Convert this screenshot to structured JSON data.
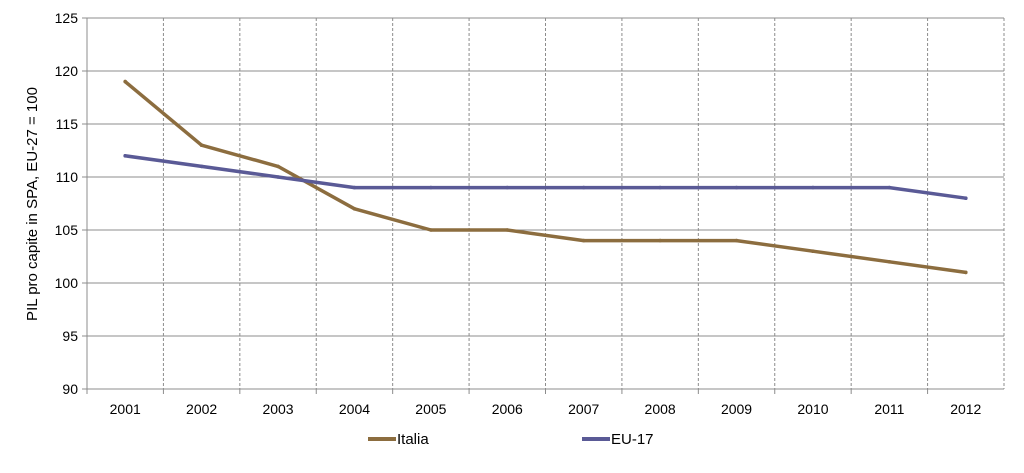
{
  "chart_data": {
    "type": "line",
    "title": "",
    "xlabel": "",
    "ylabel": "PIL pro capite in SPA, EU-27 = 100",
    "categories": [
      "2001",
      "2002",
      "2003",
      "2004",
      "2005",
      "2006",
      "2007",
      "2008",
      "2009",
      "2010",
      "2011",
      "2012"
    ],
    "ylim": [
      90,
      125
    ],
    "yticks": [
      90,
      95,
      100,
      105,
      110,
      115,
      120,
      125
    ],
    "grid": {
      "horizontal": true,
      "vertical": true,
      "vertical_style": "dashed"
    },
    "legend": "bottom",
    "series": [
      {
        "name": "Italia",
        "color": "#8c6d3f",
        "values": [
          119,
          113,
          111,
          107,
          105,
          105,
          104,
          104,
          104,
          103,
          102,
          101
        ]
      },
      {
        "name": "EU-17",
        "color": "#5a5a96",
        "values": [
          112,
          111,
          110,
          109,
          109,
          109,
          109,
          109,
          109,
          109,
          109,
          108
        ]
      }
    ]
  }
}
